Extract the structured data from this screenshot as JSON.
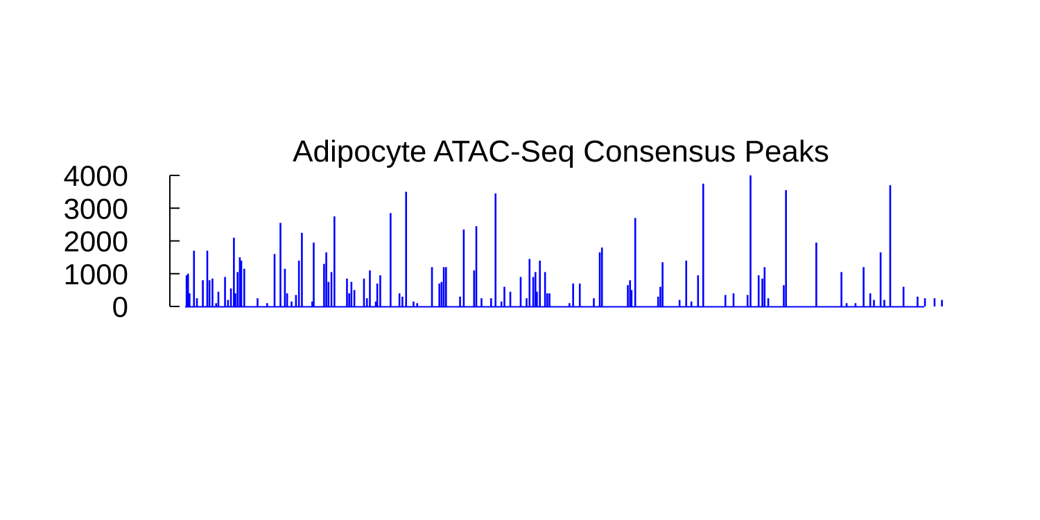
{
  "chart_data": {
    "type": "bar",
    "title": "Adipocyte ATAC-Seq Consensus Peaks",
    "xlabel": "",
    "ylabel": "",
    "ylim": [
      0,
      4000
    ],
    "yticks": [
      0,
      1000,
      2000,
      3000,
      4000
    ],
    "xlim": [
      0,
      1000
    ],
    "show_x_axis": false,
    "grid": false,
    "legend": "none",
    "color": "#0000ff",
    "series": [
      {
        "values": [
          [
            2,
            950
          ],
          [
            4,
            1000
          ],
          [
            6,
            400
          ],
          [
            12,
            1700
          ],
          [
            16,
            250
          ],
          [
            24,
            800
          ],
          [
            30,
            1700
          ],
          [
            33,
            800
          ],
          [
            37,
            850
          ],
          [
            42,
            100
          ],
          [
            45,
            450
          ],
          [
            54,
            900
          ],
          [
            58,
            200
          ],
          [
            62,
            550
          ],
          [
            66,
            2100
          ],
          [
            68,
            400
          ],
          [
            71,
            1050
          ],
          [
            74,
            1500
          ],
          [
            76,
            1400
          ],
          [
            80,
            1150
          ],
          [
            98,
            250
          ],
          [
            111,
            100
          ],
          [
            121,
            1600
          ],
          [
            129,
            2550
          ],
          [
            135,
            1150
          ],
          [
            138,
            400
          ],
          [
            144,
            150
          ],
          [
            150,
            350
          ],
          [
            154,
            1400
          ],
          [
            158,
            2250
          ],
          [
            172,
            150
          ],
          [
            174,
            1950
          ],
          [
            188,
            1300
          ],
          [
            191,
            1650
          ],
          [
            194,
            750
          ],
          [
            198,
            1050
          ],
          [
            202,
            2750
          ],
          [
            219,
            850
          ],
          [
            222,
            400
          ],
          [
            225,
            750
          ],
          [
            229,
            500
          ],
          [
            242,
            850
          ],
          [
            246,
            250
          ],
          [
            250,
            1100
          ],
          [
            258,
            150
          ],
          [
            260,
            700
          ],
          [
            264,
            950
          ],
          [
            278,
            2850
          ],
          [
            290,
            400
          ],
          [
            294,
            300
          ],
          [
            299,
            3500
          ],
          [
            309,
            150
          ],
          [
            314,
            100
          ],
          [
            334,
            1200
          ],
          [
            344,
            700
          ],
          [
            347,
            750
          ],
          [
            350,
            1200
          ],
          [
            353,
            1200
          ],
          [
            372,
            300
          ],
          [
            377,
            2350
          ],
          [
            391,
            1100
          ],
          [
            394,
            2450
          ],
          [
            401,
            250
          ],
          [
            414,
            250
          ],
          [
            420,
            3450
          ],
          [
            428,
            150
          ],
          [
            432,
            600
          ],
          [
            440,
            450
          ],
          [
            454,
            900
          ],
          [
            462,
            250
          ],
          [
            466,
            1450
          ],
          [
            471,
            900
          ],
          [
            474,
            1050
          ],
          [
            476,
            450
          ],
          [
            480,
            1400
          ],
          [
            487,
            1050
          ],
          [
            490,
            400
          ],
          [
            493,
            400
          ],
          [
            520,
            100
          ],
          [
            525,
            700
          ],
          [
            534,
            700
          ],
          [
            553,
            250
          ],
          [
            561,
            1650
          ],
          [
            564,
            1800
          ],
          [
            599,
            650
          ],
          [
            602,
            800
          ],
          [
            604,
            500
          ],
          [
            609,
            2700
          ],
          [
            640,
            300
          ],
          [
            643,
            600
          ],
          [
            646,
            1350
          ],
          [
            669,
            200
          ],
          [
            678,
            1400
          ],
          [
            685,
            150
          ],
          [
            694,
            950
          ],
          [
            701,
            3750
          ],
          [
            731,
            350
          ],
          [
            742,
            400
          ],
          [
            761,
            350
          ],
          [
            765,
            4000
          ],
          [
            776,
            950
          ],
          [
            781,
            850
          ],
          [
            784,
            1200
          ],
          [
            789,
            250
          ],
          [
            810,
            650
          ],
          [
            813,
            3550
          ],
          [
            854,
            1950
          ],
          [
            888,
            1050
          ],
          [
            895,
            100
          ],
          [
            907,
            100
          ],
          [
            918,
            1200
          ],
          [
            927,
            400
          ],
          [
            932,
            200
          ],
          [
            941,
            1650
          ],
          [
            946,
            200
          ],
          [
            954,
            3700
          ],
          [
            972,
            600
          ],
          [
            991,
            300
          ],
          [
            1001,
            250
          ],
          [
            1014,
            250
          ],
          [
            1024,
            200
          ]
        ]
      }
    ]
  }
}
